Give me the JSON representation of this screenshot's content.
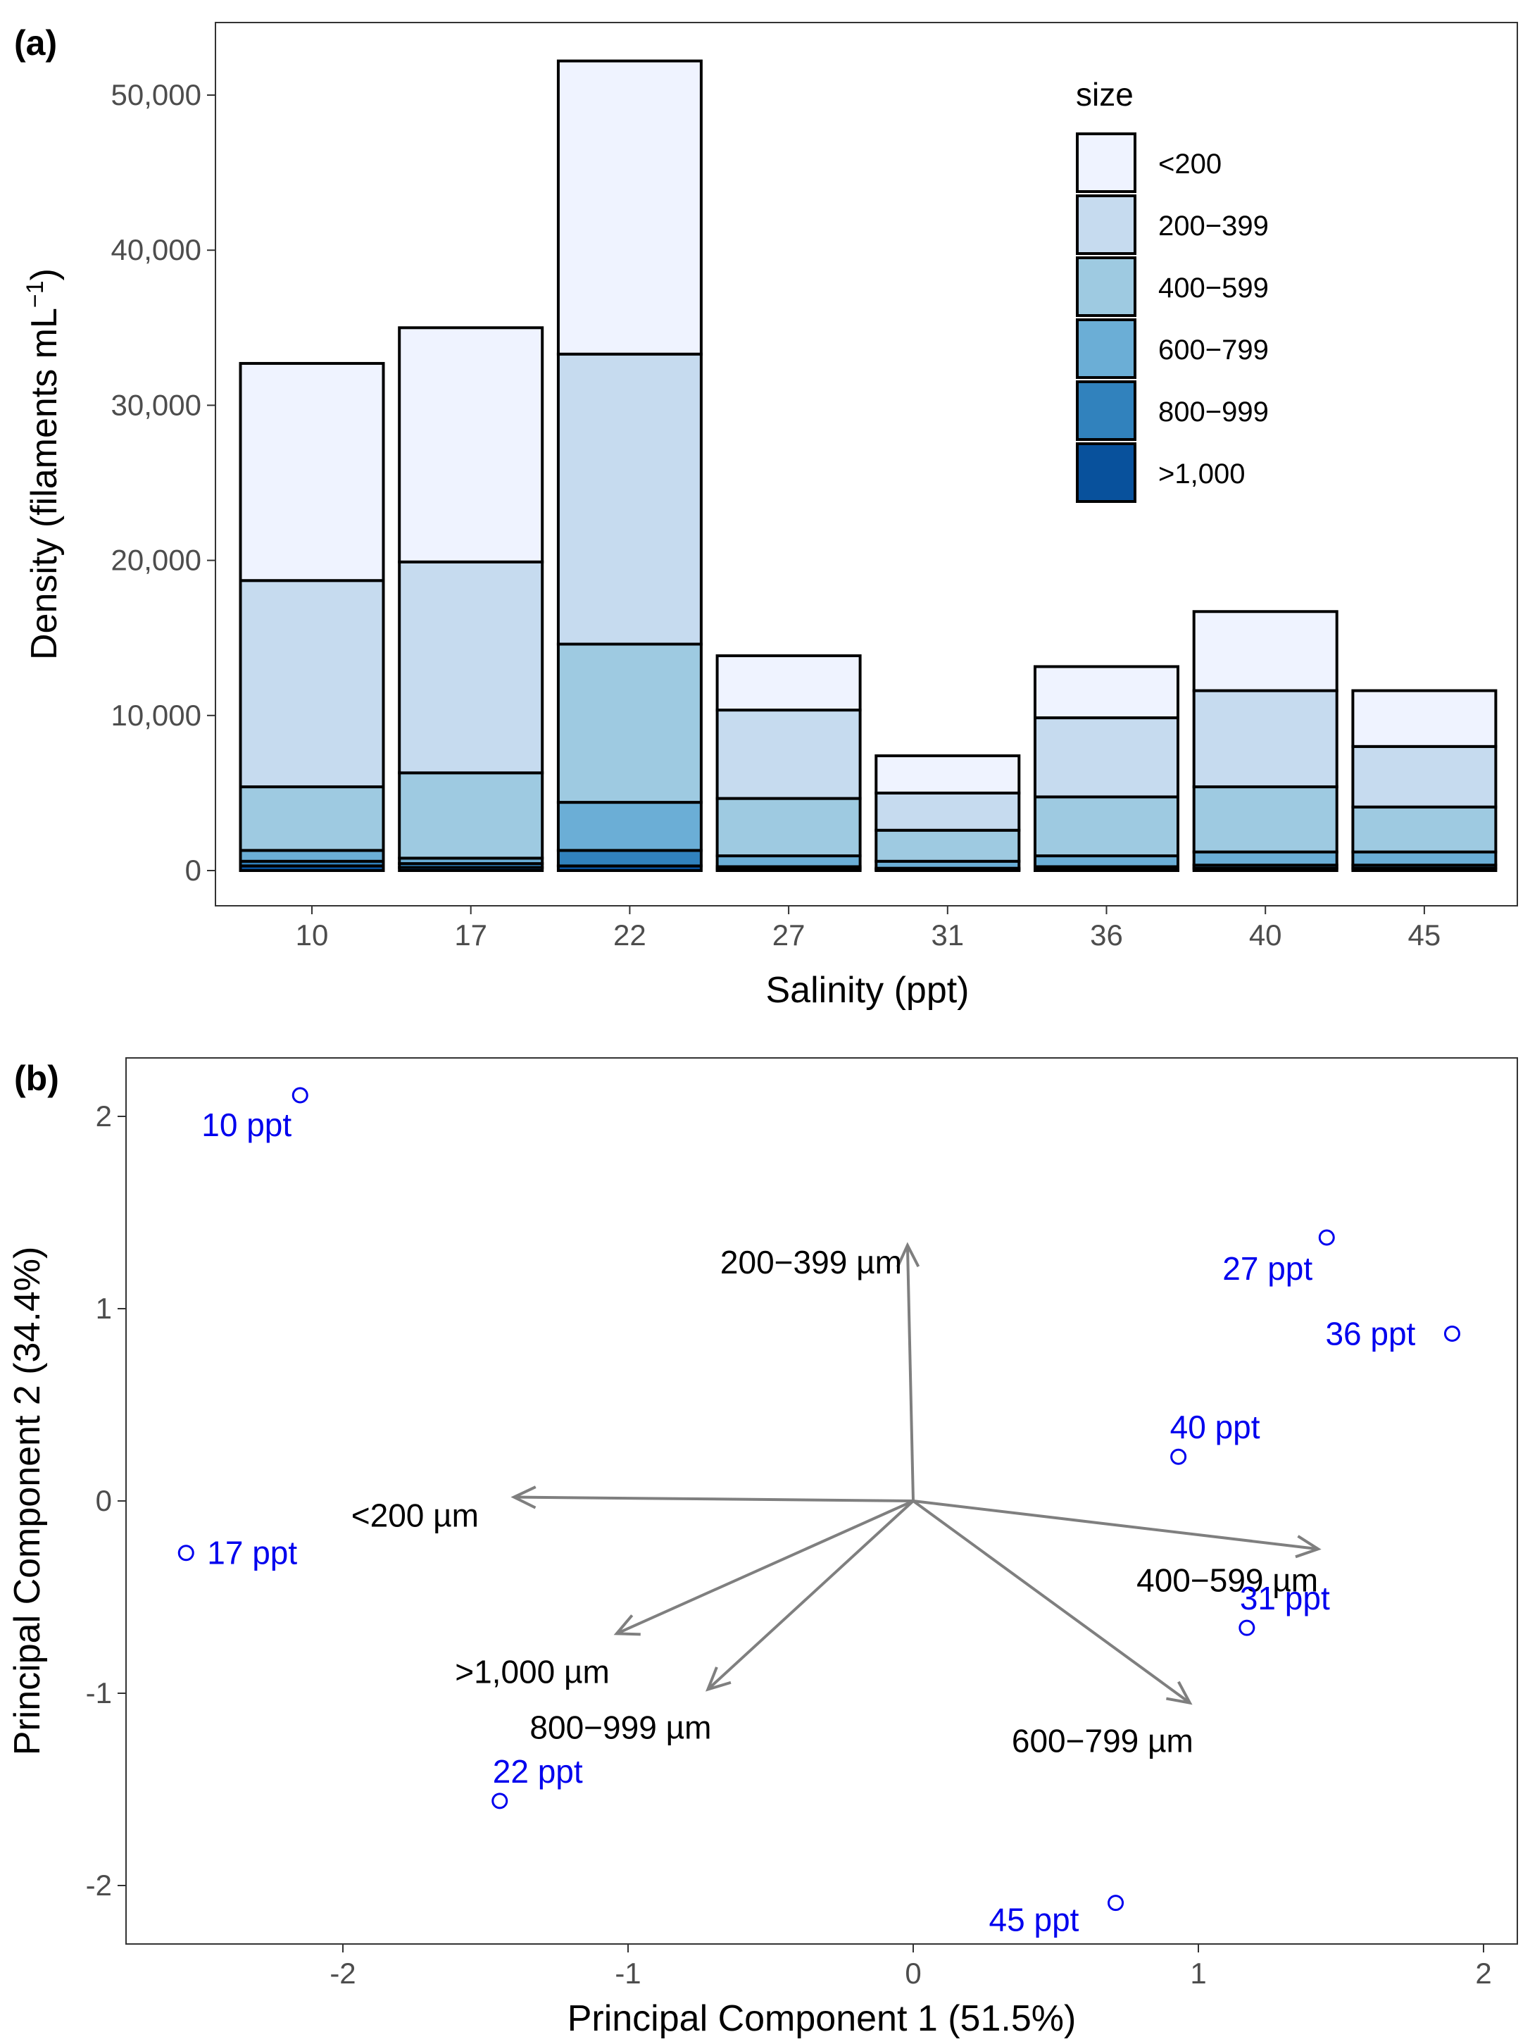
{
  "chart_data": [
    {
      "panel": "(a)",
      "type": "bar",
      "stacked": true,
      "xlabel": "Salinity (ppt)",
      "ylabel": "Density (filaments mL",
      "ylabel_sup": "−1",
      "ylabel_end": ")",
      "ylim": [
        0,
        53000
      ],
      "y_ticks": [
        0,
        10000,
        20000,
        30000,
        40000,
        50000
      ],
      "y_tick_labels": [
        "0",
        "10,000",
        "20,000",
        "30,000",
        "40,000",
        "50,000"
      ],
      "categories": [
        "10",
        "17",
        "22",
        "27",
        "31",
        "36",
        "40",
        "45"
      ],
      "legend_title": "size",
      "legend_position": "top-right",
      "series": [
        {
          "name": ">1,000",
          "color": "#08519c",
          "values": [
            300,
            200,
            300,
            100,
            50,
            100,
            150,
            150
          ]
        },
        {
          "name": "800-999",
          "color": "#3182bd",
          "values": [
            300,
            250,
            1000,
            150,
            100,
            150,
            200,
            200
          ]
        },
        {
          "name": "600-799",
          "color": "#6baed6",
          "values": [
            700,
            350,
            3100,
            700,
            450,
            700,
            850,
            850
          ]
        },
        {
          "name": "400-599",
          "color": "#9ecae1",
          "values": [
            4100,
            5500,
            10200,
            3700,
            2000,
            3800,
            4200,
            2900
          ]
        },
        {
          "name": "200-399",
          "color": "#c6dbef",
          "values": [
            13300,
            13600,
            18700,
            5700,
            2400,
            5100,
            6200,
            3900
          ]
        },
        {
          "name": "<200",
          "color": "#eff3ff",
          "values": [
            14000,
            15100,
            18900,
            3500,
            2400,
            3300,
            5100,
            3600
          ]
        }
      ],
      "legend_order": [
        "<200",
        "200-399",
        "400-599",
        "600-799",
        "800-999",
        ">1,000"
      ],
      "legend_labels": [
        "<200",
        "200−399",
        "400−599",
        "600−799",
        "800−999",
        ">1,000"
      ]
    },
    {
      "panel": "(b)",
      "type": "scatter",
      "subtype": "biplot",
      "xlabel": "Principal Component 1 (51.5%)",
      "ylabel": "Principal Component 2 (34.4%)",
      "xlim": [
        -2.77,
        2.12
      ],
      "ylim": [
        -2.27,
        2.3
      ],
      "x_ticks": [
        -2,
        -1,
        0,
        1,
        2
      ],
      "y_ticks": [
        -2,
        -1,
        0,
        1,
        2
      ],
      "x_tick_labels": [
        "-2",
        "-1",
        "0",
        "1",
        "2"
      ],
      "y_tick_labels": [
        "-2",
        "-1",
        "0",
        "1",
        "2"
      ],
      "point_color": "#0000ee",
      "arrow_color": "#7f7f7f",
      "points": [
        {
          "label": "10 ppt",
          "x": -2.15,
          "y": 2.11
        },
        {
          "label": "17 ppt",
          "x": -2.55,
          "y": -0.27
        },
        {
          "label": "22 ppt",
          "x": -1.45,
          "y": -1.56
        },
        {
          "label": "27 ppt",
          "x": 1.45,
          "y": 1.37
        },
        {
          "label": "31 ppt",
          "x": 1.17,
          "y": -0.66
        },
        {
          "label": "36 ppt",
          "x": 1.89,
          "y": 0.87
        },
        {
          "label": "40 ppt",
          "x": 0.93,
          "y": 0.23
        },
        {
          "label": "45 ppt",
          "x": 0.71,
          "y": -2.09
        }
      ],
      "loadings": [
        {
          "label": "200−399 µm",
          "x": -0.02,
          "y": 1.33
        },
        {
          "label": "<200 µm",
          "x": -1.4,
          "y": 0.02
        },
        {
          "label": ">1,000 µm",
          "x": -1.04,
          "y": -0.69
        },
        {
          "label": "800−999 µm",
          "x": -0.72,
          "y": -0.98
        },
        {
          "label": "600−799 µm",
          "x": 0.97,
          "y": -1.05
        },
        {
          "label": "400−599 µm",
          "x": 1.42,
          "y": -0.25
        }
      ]
    }
  ]
}
